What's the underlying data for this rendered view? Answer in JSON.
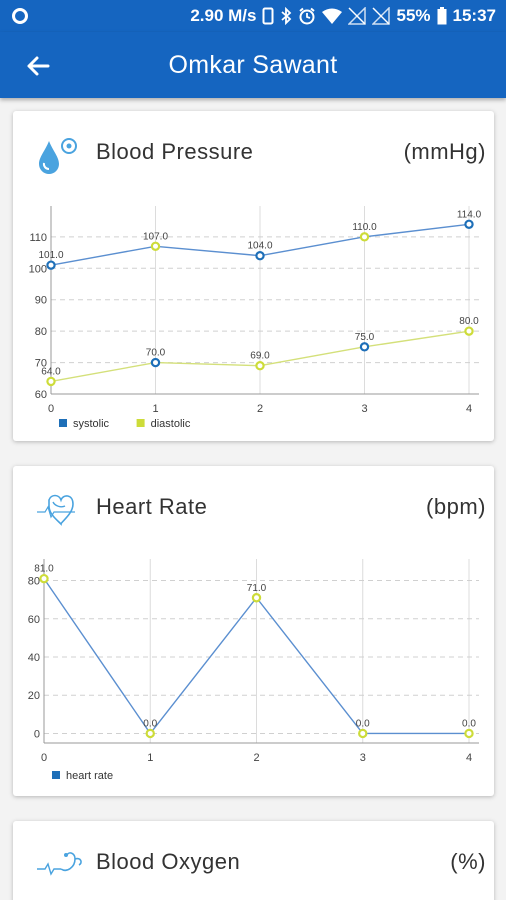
{
  "status_bar": {
    "network_speed": "2.90 M/s",
    "battery_percent": "55%",
    "time": "15:37"
  },
  "app_bar": {
    "title": "Omkar Sawant",
    "back_icon": "arrow-left-icon"
  },
  "colors": {
    "primary": "#1565c0",
    "series_blue": "#1e6fb8",
    "series_green": "#cddc39"
  },
  "cards": [
    {
      "title": "Blood Pressure",
      "unit": "(mmHg)",
      "icon": "blood-drop-icon",
      "chart_data": {
        "type": "line",
        "x": [
          0,
          1,
          2,
          3,
          4
        ],
        "ylim": [
          60,
          116
        ],
        "yticks": [
          60,
          70,
          80,
          90,
          100,
          110
        ],
        "grid": true,
        "legend_position": "bottom-left",
        "series": [
          {
            "name": "systolic",
            "values": [
              101.0,
              107.0,
              104.0,
              110.0,
              114.0
            ],
            "labels": [
              "101.0",
              "107.0",
              "104.0",
              "110.0",
              "114.0"
            ]
          },
          {
            "name": "diastolic",
            "values": [
              64.0,
              70.0,
              69.0,
              75.0,
              80.0
            ],
            "labels": [
              "64.0",
              "70.0",
              "69.0",
              "75.0",
              "80.0"
            ]
          }
        ]
      }
    },
    {
      "title": "Heart Rate",
      "unit": "(bpm)",
      "icon": "heart-icon",
      "chart_data": {
        "type": "line",
        "x": [
          0,
          1,
          2,
          3,
          4
        ],
        "ylim": [
          -5,
          85
        ],
        "yticks": [
          0,
          20,
          40,
          60,
          80
        ],
        "grid": true,
        "legend_position": "bottom-left",
        "series": [
          {
            "name": "heart rate",
            "values": [
              81.0,
              0.0,
              71.0,
              0.0,
              0.0
            ],
            "labels": [
              "81.0",
              "0.0",
              "71.0",
              "0.0",
              "0.0"
            ]
          }
        ]
      }
    },
    {
      "title": "Blood Oxygen",
      "unit": "(%)",
      "icon": "stethoscope-icon"
    }
  ]
}
